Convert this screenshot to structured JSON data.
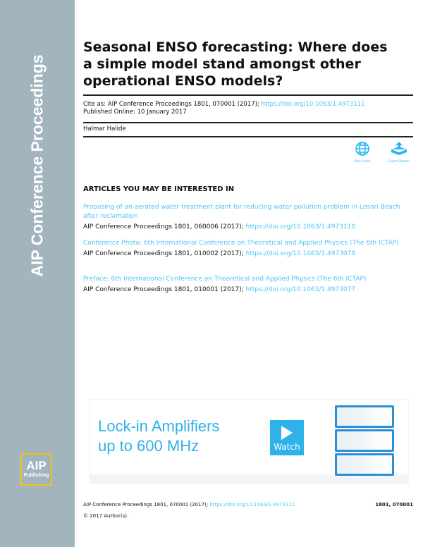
{
  "sidebar": {
    "title": "AIP Conference Proceedings",
    "logo": {
      "line1": "AIP",
      "line2": "Publishing"
    },
    "color": "#a2b5bf"
  },
  "article": {
    "title": "Seasonal ENSO forecasting: Where does a simple model stand amongst other operational ENSO models?",
    "cite_prefix": "Cite as: AIP Conference Proceedings 1801, 070001 (2017);",
    "doi": "https://doi.org/10.1063/1.4973111",
    "published": "Published Online: 10 January 2017",
    "author": "Halmar Halide"
  },
  "actions": [
    {
      "label": "View Online",
      "icon": "globe-icon"
    },
    {
      "label": "Export Citation",
      "icon": "export-icon"
    }
  ],
  "related": {
    "heading": "ARTICLES YOU MAY BE INTERESTED IN",
    "items": [
      {
        "title": "Proposing of an aerated water treatment plant for reducing water pollution problem in Losari Beach after reclamation",
        "cite": "AIP Conference Proceedings 1801, 060006 (2017);",
        "doi": "https://doi.org/10.1063/1.4973110"
      },
      {
        "title": "Conference Photo: 6th International Conference on Theoretical and Applied Physics (The 6th ICTAP)",
        "cite": "AIP Conference Proceedings 1801, 010002 (2017);",
        "doi": "https://doi.org/10.1063/1.4973078"
      },
      {
        "title": "Preface: 6th International Conference on Theoretical and Applied Physics (The 6th ICTAP)",
        "cite": "AIP Conference Proceedings 1801, 010001 (2017);",
        "doi": "https://doi.org/10.1063/1.4973077"
      }
    ]
  },
  "ad": {
    "line1": "Lock-in Amplifiers",
    "line2": "up to 600 MHz",
    "button": "Watch"
  },
  "footer": {
    "cite": "AIP Conference Proceedings 1801, 070001 (2017);",
    "doi": "https://doi.org/10.1063/1.4973111",
    "page": "1801, 070001",
    "copyright": "© 2017 Author(s)."
  }
}
